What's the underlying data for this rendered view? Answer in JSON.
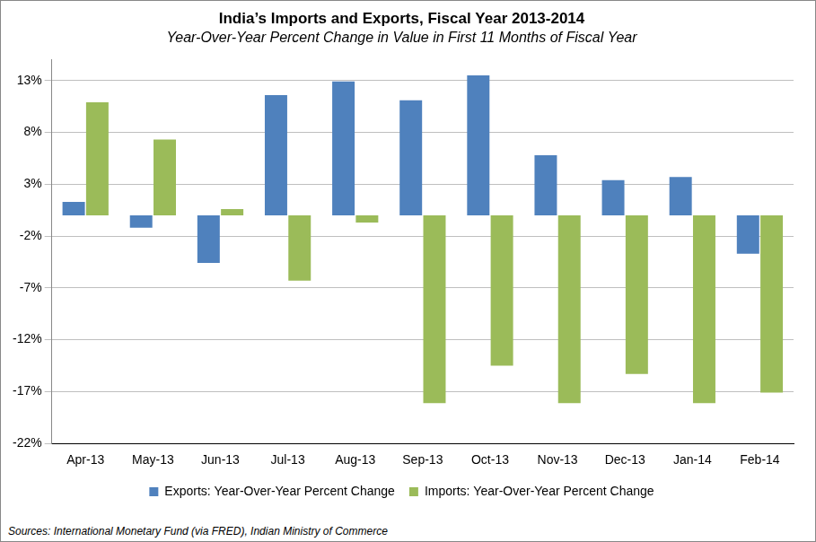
{
  "chart_data": {
    "type": "bar",
    "title": "India’s Imports and Exports, Fiscal Year 2013-2014",
    "subtitle": "Year-Over-Year Percent Change in Value in First 11 Months of Fiscal Year",
    "source": "Sources: International Monetary Fund (via FRED), Indian Ministry of Commerce",
    "categories": [
      "Apr-13",
      "May-13",
      "Jun-13",
      "Jul-13",
      "Aug-13",
      "Sep-13",
      "Oct-13",
      "Nov-13",
      "Dec-13",
      "Jan-14",
      "Feb-14"
    ],
    "series": [
      {
        "name": "Exports: Year-Over-Year Percent Change",
        "color": "#4f81bd",
        "values": [
          1.3,
          -1.2,
          -4.6,
          11.6,
          12.9,
          11.1,
          13.5,
          5.8,
          3.4,
          3.7,
          -3.7
        ]
      },
      {
        "name": "Imports: Year-Over-Year Percent Change",
        "color": "#9bbb59",
        "values": [
          10.9,
          7.3,
          0.6,
          -6.3,
          -0.7,
          -18.1,
          -14.5,
          -18.1,
          -15.3,
          -18.1,
          -17.1
        ]
      }
    ],
    "ylim": [
      -22,
      15
    ],
    "yticks": [
      {
        "value": -22,
        "label": "-22%"
      },
      {
        "value": -17,
        "label": "-17%"
      },
      {
        "value": -12,
        "label": "-12%"
      },
      {
        "value": -7,
        "label": "-7%"
      },
      {
        "value": -2,
        "label": "-2%"
      },
      {
        "value": 3,
        "label": "3%"
      },
      {
        "value": 8,
        "label": "8%"
      },
      {
        "value": 13,
        "label": "13%"
      }
    ],
    "grid": true,
    "legend": "bottom"
  }
}
